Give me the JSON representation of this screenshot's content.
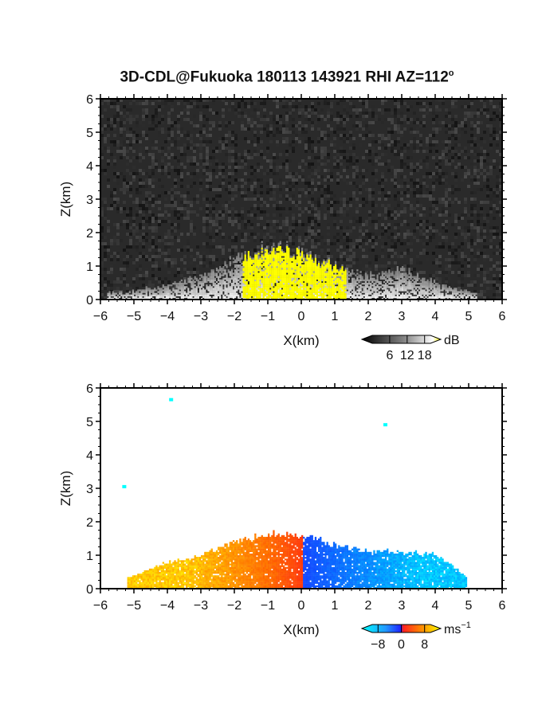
{
  "title_main": "3D-CDL@Fukuoka 180113 143921 RHI AZ=112",
  "title_sup": "o",
  "chart_data": [
    {
      "type": "heatmap",
      "variable": "reflectivity / SNR",
      "xlabel": "X(km)",
      "ylabel": "Z(km)",
      "xlim": [
        -6,
        6
      ],
      "ylim": [
        0,
        6
      ],
      "xticks": [
        "−6",
        "−5",
        "−4",
        "−3",
        "−2",
        "−1",
        "0",
        "1",
        "2",
        "3",
        "4",
        "5",
        "6"
      ],
      "yticks": [
        "0",
        "1",
        "2",
        "3",
        "4",
        "5",
        "6"
      ],
      "colorbar": {
        "unit": "dB",
        "ticks": [
          6,
          12,
          18
        ],
        "range": [
          0,
          20
        ],
        "colors": [
          "#000000",
          "#ffffff",
          "#ffff00"
        ]
      },
      "echo_top_profile_km": {
        "x": [
          -5.5,
          -4,
          -3,
          -2,
          -1,
          0,
          1,
          2,
          3,
          4,
          5
        ],
        "z": [
          0.2,
          0.4,
          0.7,
          1.2,
          1.6,
          1.4,
          1.0,
          0.7,
          0.9,
          0.5,
          0.2
        ]
      },
      "core": {
        "x_range": [
          -1.8,
          1.3
        ],
        "z_range": [
          0,
          1.6
        ],
        "value_db": 18
      }
    },
    {
      "type": "heatmap",
      "variable": "Doppler velocity",
      "xlabel": "X(km)",
      "ylabel": "Z(km)",
      "xlim": [
        -6,
        6
      ],
      "ylim": [
        0,
        6
      ],
      "xticks": [
        "−6",
        "−5",
        "−4",
        "−3",
        "−2",
        "−1",
        "0",
        "1",
        "2",
        "3",
        "4",
        "5",
        "6"
      ],
      "yticks": [
        "0",
        "1",
        "2",
        "3",
        "4",
        "5",
        "6"
      ],
      "colorbar": {
        "unit": "ms",
        "unit_sup": "−1",
        "tick_labels": [
          "−8",
          "0",
          "8"
        ],
        "ticks": [
          -8,
          0,
          8
        ],
        "range": [
          -10,
          10
        ]
      },
      "echo_top_profile_km": {
        "x": [
          -5.2,
          -4,
          -3,
          -2,
          -1,
          0,
          1,
          2,
          3,
          4,
          5
        ],
        "z": [
          0.3,
          0.8,
          1.0,
          1.4,
          1.7,
          1.6,
          1.3,
          1.1,
          1.1,
          1.0,
          0.3
        ]
      },
      "velocity_sign": "positive for X<0 (up to about +8 m/s), negative for X>0 (down to about −8 m/s)",
      "isolated_points_km": [
        {
          "x": -3.9,
          "z": 5.65
        },
        {
          "x": 2.5,
          "z": 4.9
        },
        {
          "x": -5.3,
          "z": 3.05
        }
      ]
    }
  ]
}
